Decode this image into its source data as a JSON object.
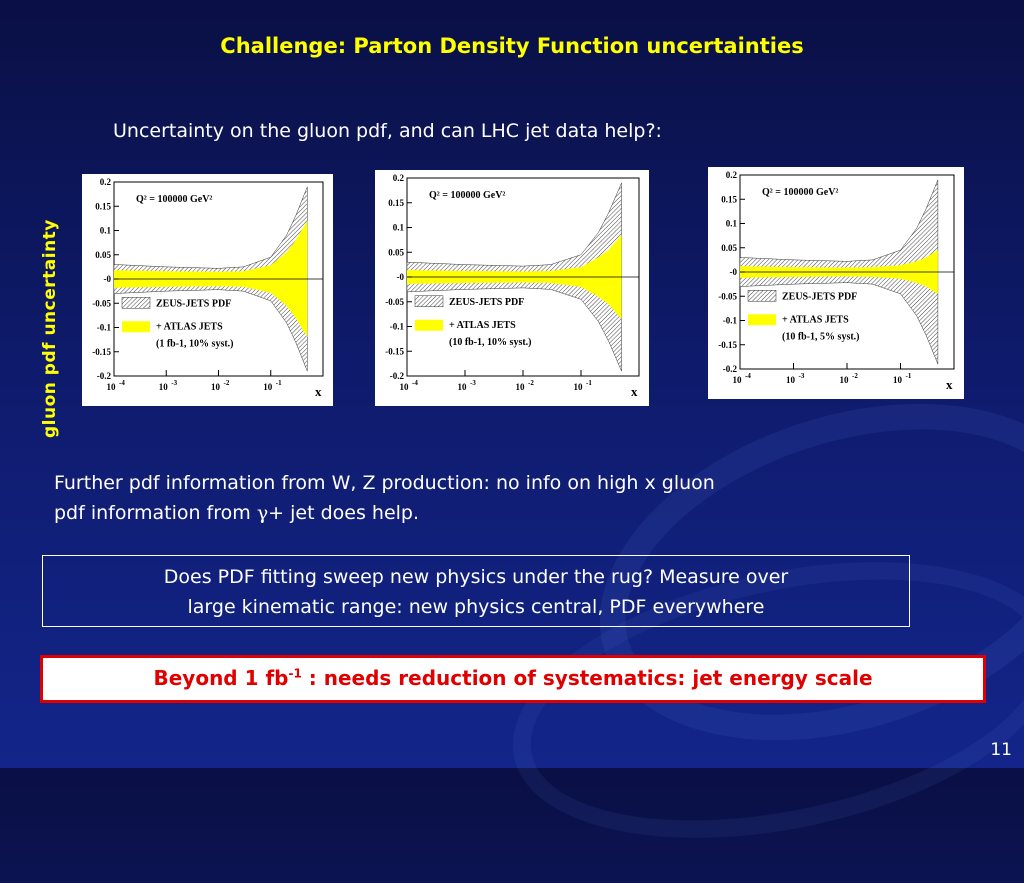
{
  "title": "Challenge: Parton Density Function uncertainties",
  "subtitle": "Uncertainty on the gluon pdf, and can LHC jet data help?:",
  "y_axis_label": "gluon pdf uncertainty",
  "plots": [
    {
      "q2_label": "Q² = 100000 GeV²",
      "legend_1": "ZEUS-JETS PDF",
      "legend_2": "+ ATLAS JETS",
      "legend_3": "(1 fb-1, 10% syst.)"
    },
    {
      "q2_label": "Q² = 100000 GeV²",
      "legend_1": "ZEUS-JETS PDF",
      "legend_2": "+ ATLAS JETS",
      "legend_3": "(10 fb-1, 10% syst.)"
    },
    {
      "q2_label": "Q² = 100000 GeV²",
      "legend_1": "ZEUS-JETS PDF",
      "legend_2": "+ ATLAS JETS",
      "legend_3": "(10 fb-1, 5% syst.)"
    }
  ],
  "ytick_labels": [
    "0.2",
    "0.15",
    "0.1",
    "0.05",
    "-0",
    "-0.05",
    "-0.1",
    "-0.15",
    "-0.2"
  ],
  "xtick_labels": [
    "10",
    "10",
    "10",
    "10"
  ],
  "xtick_exponents": [
    "-4",
    "-3",
    "-2",
    "-1"
  ],
  "x_axis_label": "x",
  "paragraph_line1": "Further pdf information from W, Z production: no info on high x gluon",
  "paragraph_line2_a": "pdf information from ",
  "paragraph_gamma": "γ",
  "paragraph_line2_b": "+ jet does help.",
  "box1_line1": "Does PDF fitting sweep new physics under the rug? Measure over",
  "box1_line2": "large kinematic range: new physics central, PDF everywhere",
  "box2_prefix": "Beyond 1 fb",
  "box2_sup": "-1",
  "box2_suffix": " : needs reduction of systematics: jet energy scale",
  "page_number": "11",
  "colors": {
    "title": "#ffff00",
    "band_yellow": "#ffff00",
    "alert_red": "#e00000"
  },
  "chart_data": [
    {
      "type": "area",
      "x_scale": "log",
      "xlim": [
        0.0001,
        1
      ],
      "ylim": [
        -0.2,
        0.2
      ],
      "x": [
        0.0001,
        0.001,
        0.01,
        0.03,
        0.1,
        0.2,
        0.3,
        0.5
      ],
      "series": [
        {
          "name": "ZEUS-JETS PDF",
          "upper": [
            0.03,
            0.025,
            0.022,
            0.025,
            0.045,
            0.09,
            0.13,
            0.19
          ]
        },
        {
          "name": "+ ATLAS JETS",
          "upper": [
            0.018,
            0.016,
            0.015,
            0.016,
            0.028,
            0.055,
            0.08,
            0.12
          ]
        }
      ]
    },
    {
      "type": "area",
      "x_scale": "log",
      "xlim": [
        0.0001,
        1
      ],
      "ylim": [
        -0.2,
        0.2
      ],
      "x": [
        0.0001,
        0.001,
        0.01,
        0.03,
        0.1,
        0.2,
        0.3,
        0.5
      ],
      "series": [
        {
          "name": "ZEUS-JETS PDF",
          "upper": [
            0.03,
            0.025,
            0.022,
            0.025,
            0.045,
            0.09,
            0.13,
            0.19
          ]
        },
        {
          "name": "+ ATLAS JETS",
          "upper": [
            0.014,
            0.012,
            0.011,
            0.012,
            0.02,
            0.04,
            0.055,
            0.085
          ]
        }
      ]
    },
    {
      "type": "area",
      "x_scale": "log",
      "xlim": [
        0.0001,
        1
      ],
      "ylim": [
        -0.2,
        0.2
      ],
      "x": [
        0.0001,
        0.001,
        0.01,
        0.03,
        0.1,
        0.2,
        0.3,
        0.5
      ],
      "series": [
        {
          "name": "ZEUS-JETS PDF",
          "upper": [
            0.03,
            0.025,
            0.022,
            0.025,
            0.045,
            0.09,
            0.13,
            0.19
          ]
        },
        {
          "name": "+ ATLAS JETS",
          "upper": [
            0.012,
            0.01,
            0.009,
            0.01,
            0.014,
            0.022,
            0.03,
            0.045
          ]
        }
      ]
    }
  ]
}
